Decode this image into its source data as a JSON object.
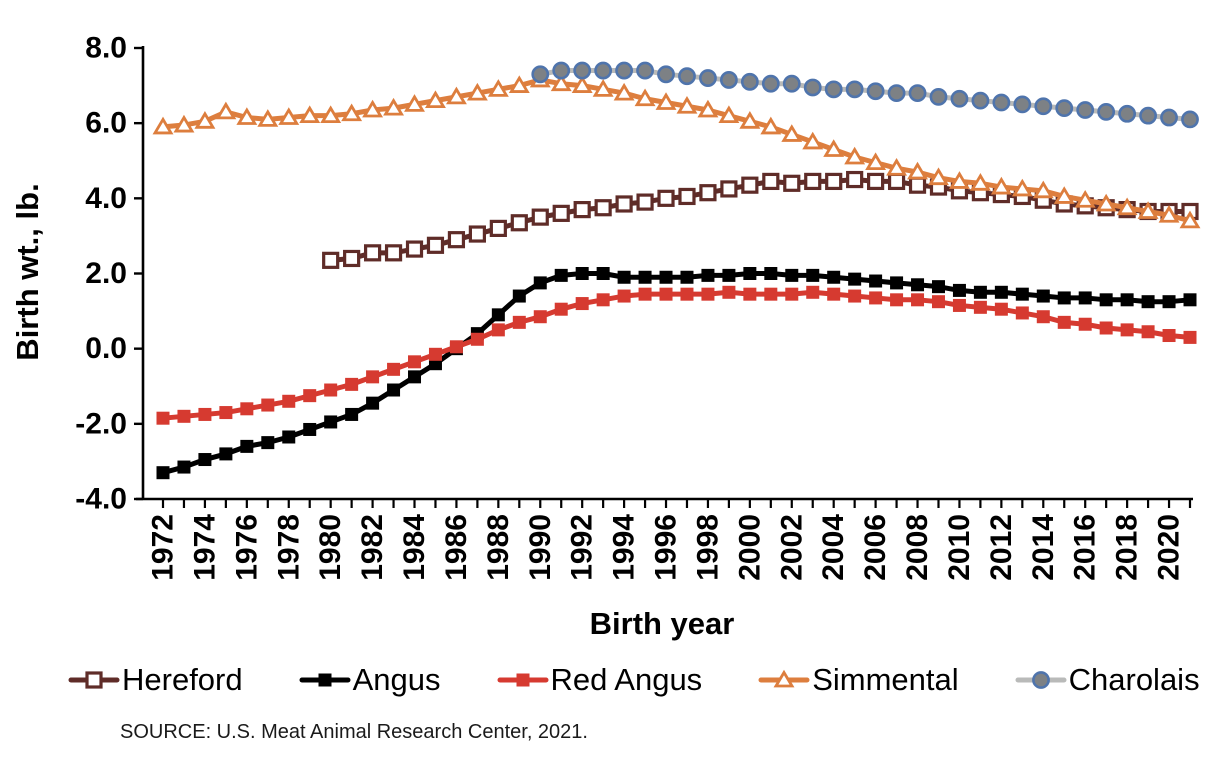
{
  "chart_data": {
    "type": "line",
    "title": "",
    "xlabel": "Birth year",
    "ylabel": "Birth wt., lb.",
    "ylim": [
      -4.0,
      8.0
    ],
    "ytick_values": [
      -4.0,
      -2.0,
      0.0,
      2.0,
      4.0,
      6.0,
      8.0
    ],
    "ytick_labels": [
      "-4.0",
      "-2.0",
      "0.0",
      "2.0",
      "4.0",
      "6.0",
      "8.0"
    ],
    "x_range": [
      1972,
      2021
    ],
    "xtick_every_year": true,
    "xtick_labeled_years": [
      1972,
      1974,
      1976,
      1978,
      1980,
      1982,
      1984,
      1986,
      1988,
      1990,
      1992,
      1994,
      1996,
      1998,
      2000,
      2002,
      2004,
      2006,
      2008,
      2010,
      2012,
      2014,
      2016,
      2018,
      2020
    ],
    "grid": false,
    "legend_position": "bottom",
    "source_note": "SOURCE: U.S. Meat Animal Research Center, 2021.",
    "series": [
      {
        "name": "Hereford",
        "color": "#5f2c28",
        "marker": "square-open",
        "start_year": 1980,
        "values": [
          2.35,
          2.4,
          2.55,
          2.55,
          2.65,
          2.75,
          2.9,
          3.05,
          3.2,
          3.35,
          3.5,
          3.6,
          3.7,
          3.75,
          3.85,
          3.9,
          4.0,
          4.05,
          4.15,
          4.25,
          4.35,
          4.45,
          4.4,
          4.45,
          4.45,
          4.5,
          4.45,
          4.45,
          4.35,
          4.3,
          4.2,
          4.15,
          4.1,
          4.05,
          3.95,
          3.85,
          3.8,
          3.75,
          3.7,
          3.65,
          3.65,
          3.65
        ]
      },
      {
        "name": "Angus",
        "color": "#000000",
        "marker": "square",
        "start_year": 1972,
        "values": [
          -3.3,
          -3.15,
          -2.95,
          -2.8,
          -2.6,
          -2.5,
          -2.35,
          -2.15,
          -1.95,
          -1.75,
          -1.45,
          -1.1,
          -0.75,
          -0.4,
          0.0,
          0.4,
          0.9,
          1.4,
          1.75,
          1.95,
          2.0,
          2.0,
          1.9,
          1.9,
          1.9,
          1.9,
          1.95,
          1.95,
          2.0,
          2.0,
          1.95,
          1.95,
          1.9,
          1.85,
          1.8,
          1.75,
          1.7,
          1.65,
          1.55,
          1.5,
          1.5,
          1.45,
          1.4,
          1.35,
          1.35,
          1.3,
          1.3,
          1.25,
          1.25,
          1.3
        ]
      },
      {
        "name": "Red Angus",
        "color": "#d63a30",
        "marker": "square",
        "start_year": 1972,
        "values": [
          -1.85,
          -1.8,
          -1.75,
          -1.7,
          -1.6,
          -1.5,
          -1.4,
          -1.25,
          -1.1,
          -0.95,
          -0.75,
          -0.55,
          -0.35,
          -0.15,
          0.05,
          0.25,
          0.5,
          0.7,
          0.85,
          1.05,
          1.2,
          1.3,
          1.4,
          1.45,
          1.45,
          1.45,
          1.45,
          1.5,
          1.45,
          1.45,
          1.45,
          1.5,
          1.45,
          1.4,
          1.35,
          1.3,
          1.3,
          1.25,
          1.15,
          1.1,
          1.05,
          0.95,
          0.85,
          0.7,
          0.65,
          0.55,
          0.5,
          0.45,
          0.35,
          0.3
        ]
      },
      {
        "name": "Simmental",
        "color": "#dd7e3e",
        "marker": "triangle-open",
        "start_year": 1972,
        "values": [
          5.9,
          5.95,
          6.05,
          6.3,
          6.15,
          6.1,
          6.15,
          6.2,
          6.2,
          6.25,
          6.35,
          6.4,
          6.5,
          6.6,
          6.7,
          6.8,
          6.9,
          7.0,
          7.15,
          7.05,
          7.0,
          6.9,
          6.8,
          6.65,
          6.55,
          6.45,
          6.35,
          6.2,
          6.05,
          5.9,
          5.7,
          5.5,
          5.3,
          5.1,
          4.95,
          4.8,
          4.7,
          4.55,
          4.45,
          4.4,
          4.3,
          4.25,
          4.2,
          4.05,
          3.95,
          3.85,
          3.75,
          3.65,
          3.55,
          3.4
        ]
      },
      {
        "name": "Charolais",
        "color": "#b9bab9",
        "marker": "circle",
        "marker_fill": "#7d8185",
        "marker_border": "#4f74ac",
        "start_year": 1990,
        "values": [
          7.3,
          7.4,
          7.4,
          7.4,
          7.4,
          7.4,
          7.3,
          7.25,
          7.2,
          7.15,
          7.1,
          7.05,
          7.05,
          6.95,
          6.9,
          6.9,
          6.85,
          6.8,
          6.8,
          6.7,
          6.65,
          6.6,
          6.55,
          6.5,
          6.45,
          6.4,
          6.35,
          6.3,
          6.25,
          6.2,
          6.15,
          6.1
        ]
      }
    ]
  }
}
